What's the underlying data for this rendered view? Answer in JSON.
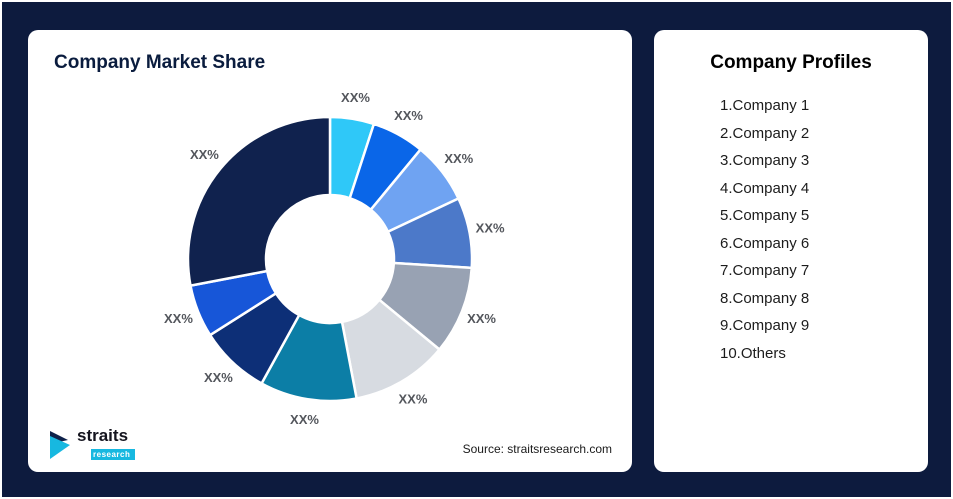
{
  "page": {
    "background": "#0D1B3E",
    "frame_border": "#FFFFFF"
  },
  "left_card": {
    "title": "Company Market Share",
    "source": "Source: straitsresearch.com",
    "logo": {
      "main": "straits",
      "sub": "research"
    }
  },
  "right_card": {
    "title": "Company Profiles",
    "items": [
      "1.Company 1",
      "2.Company 2",
      "3.Company 3",
      "4.Company 4",
      "5.Company 5",
      "6.Company 6",
      "7.Company 7",
      "8.Company 8",
      "9.Company 9",
      "10.Others"
    ]
  },
  "chart_data": {
    "type": "pie",
    "donut": true,
    "title": "Company Market Share",
    "start_angle_deg": 0,
    "direction": "clockwise",
    "categories": [
      "Company 1",
      "Company 2",
      "Company 3",
      "Company 4",
      "Company 5",
      "Company 6",
      "Company 7",
      "Company 8",
      "Company 9",
      "Others"
    ],
    "values": [
      5,
      6,
      7,
      8,
      10,
      11,
      11,
      8,
      6,
      28
    ],
    "labels": [
      "XX%",
      "XX%",
      "XX%",
      "XX%",
      "XX%",
      "XX%",
      "XX%",
      "XX%",
      "XX%",
      "XX%"
    ],
    "colors": [
      "#2FC8F8",
      "#0A66E8",
      "#6FA3F2",
      "#4C79C9",
      "#98A2B3",
      "#D7DBE1",
      "#0C7EA6",
      "#0D2F77",
      "#1756D8",
      "#10224E"
    ],
    "legend_position": "none",
    "note": "all slices labeled XX% (placeholder percentages)"
  }
}
